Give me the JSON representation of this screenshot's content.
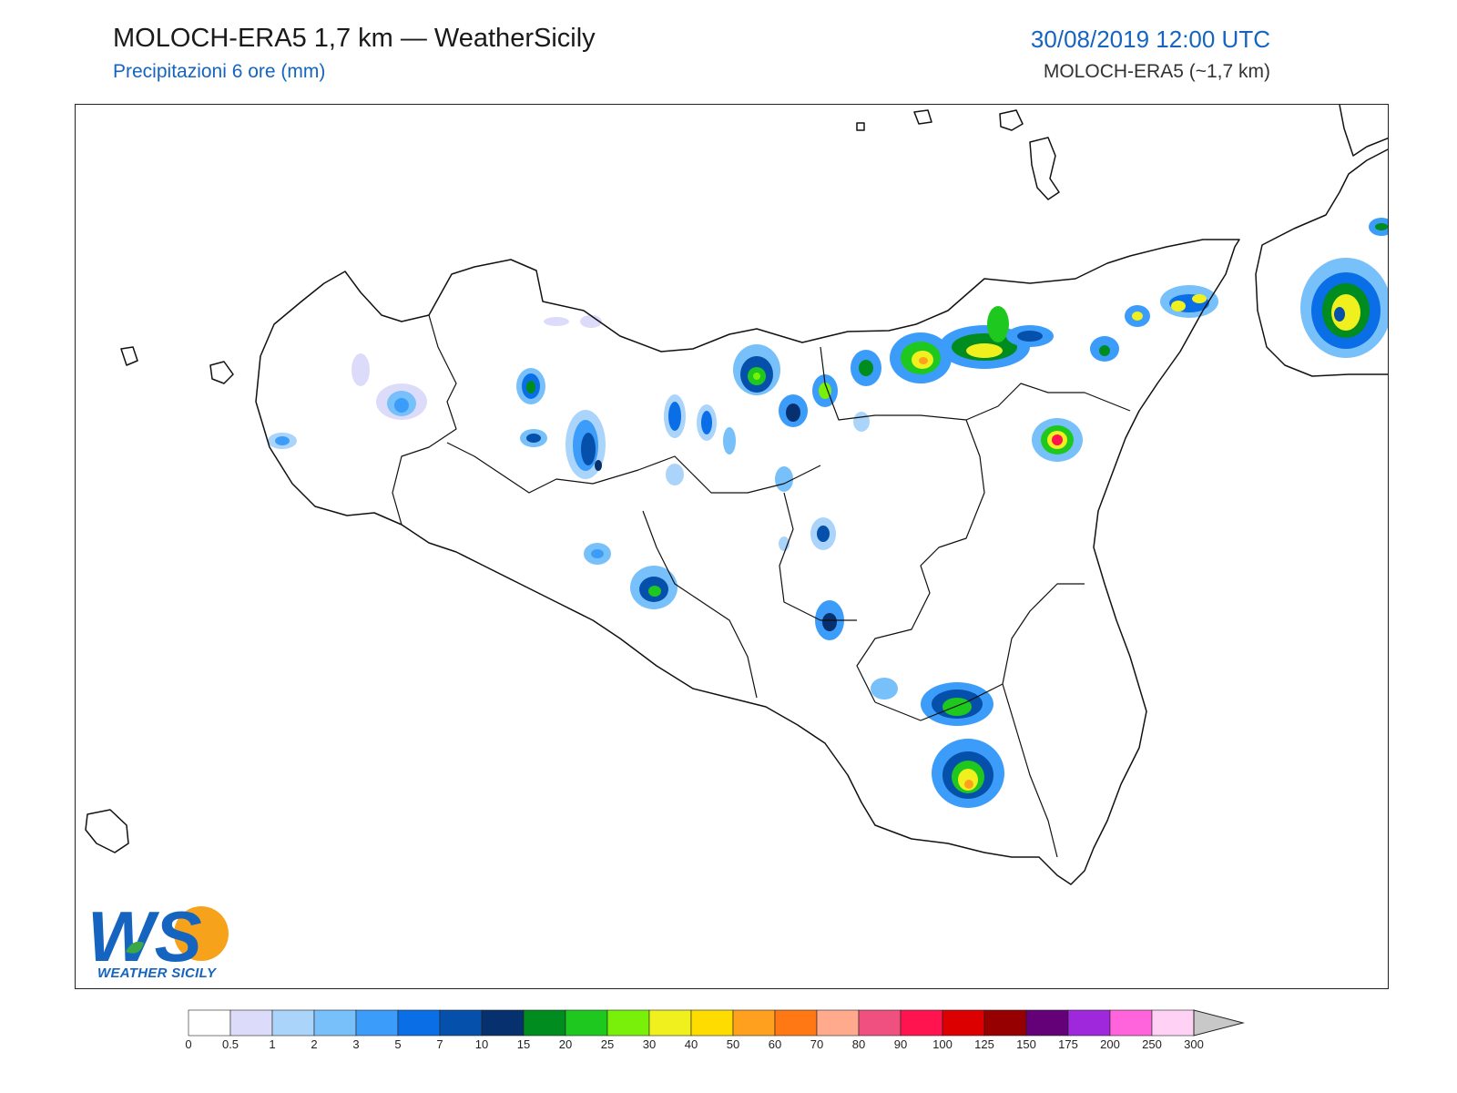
{
  "header": {
    "title": "MOLOCH-ERA5 1,7 km — WeatherSicily",
    "subtitle": "Precipitazioni 6 ore (mm)",
    "datetime": "30/08/2019 12:00 UTC",
    "model": "MOLOCH-ERA5 (~1,7 km)"
  },
  "logo": {
    "letters": "WS",
    "brand": "WEATHER SICILY"
  },
  "legend": {
    "levels": [
      "0",
      "0.5",
      "1",
      "2",
      "3",
      "5",
      "7",
      "10",
      "15",
      "20",
      "25",
      "30",
      "40",
      "50",
      "60",
      "70",
      "80",
      "90",
      "100",
      "125",
      "150",
      "175",
      "200",
      "250",
      "300"
    ],
    "colors": [
      "#ffffff",
      "#dcdcfa",
      "#aad4fa",
      "#78c0fa",
      "#3c9cfa",
      "#0a6ee6",
      "#0550aa",
      "#06306e",
      "#008c1e",
      "#1ec81e",
      "#78f00a",
      "#f0f01e",
      "#ffdc00",
      "#ffa01e",
      "#ff7814",
      "#ffaa8c",
      "#f0507f",
      "#ff1450",
      "#dc0000",
      "#960000",
      "#640078",
      "#a028dc",
      "#ff64dc",
      "#ffd2f5"
    ],
    "overflow_color": "#c8c8c8"
  }
}
